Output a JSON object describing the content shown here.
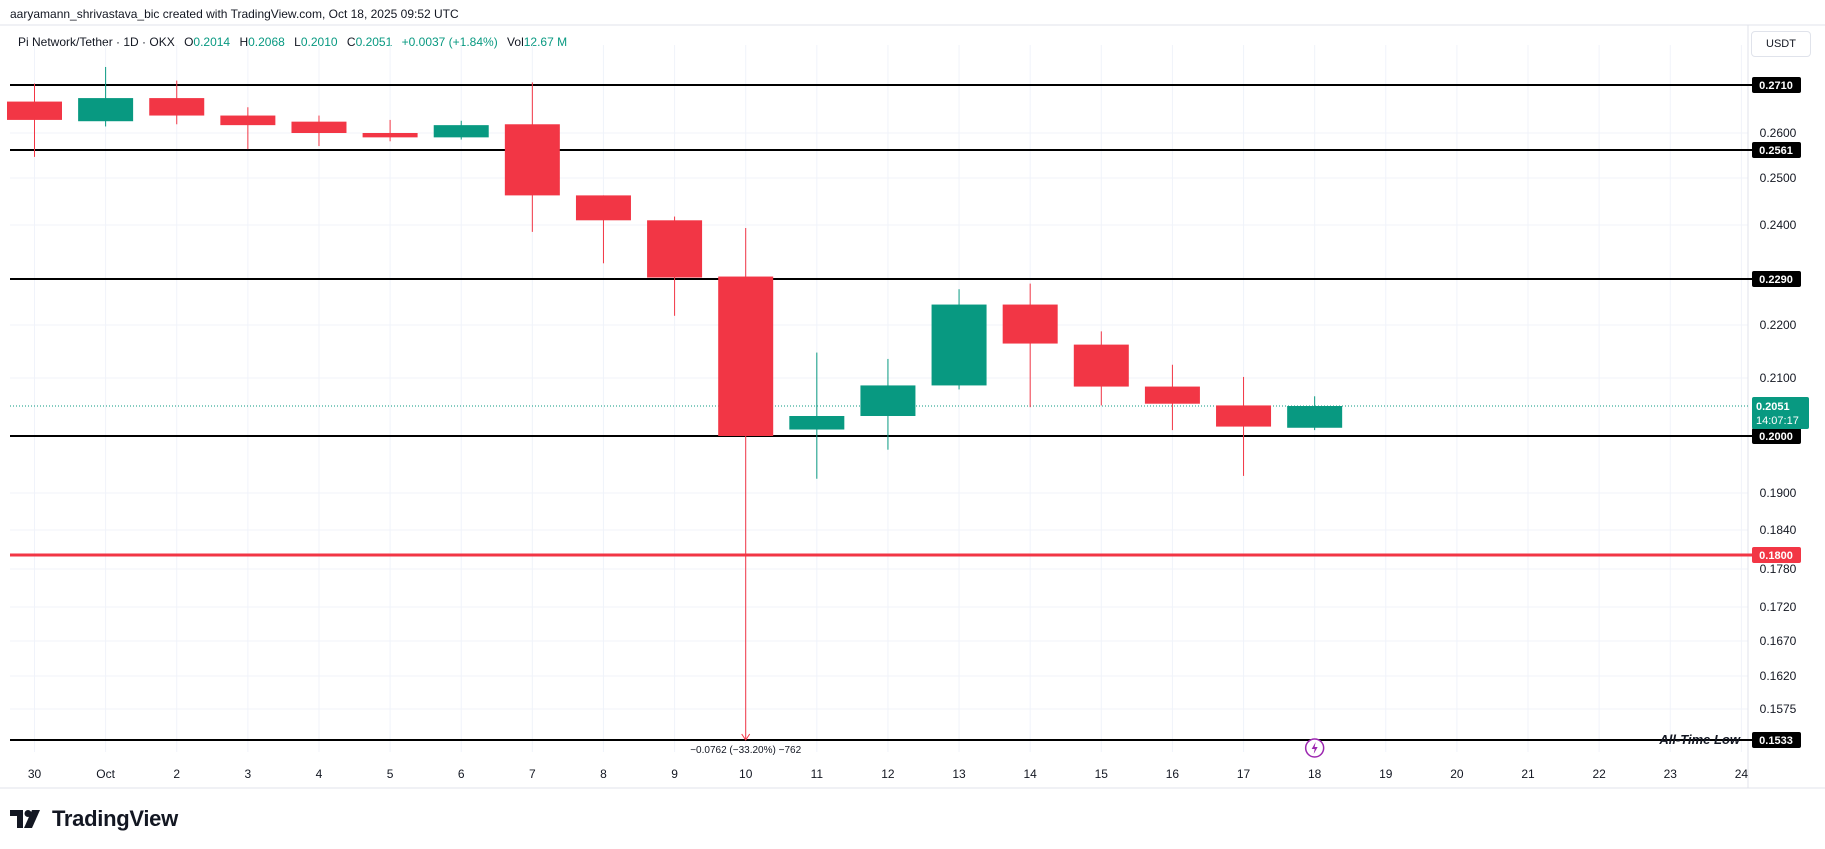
{
  "header": {
    "attribution": "aaryamann_shrivastava_bic created with TradingView.com, Oct 18, 2025 09:52 UTC",
    "symbol": "Pi Network/Tether · 1D · OKX",
    "open_label": "O",
    "open": "0.2014",
    "high_label": "H",
    "high": "0.2068",
    "low_label": "L",
    "low": "0.2010",
    "close_label": "C",
    "close": "0.2051",
    "change": "+0.0037 (+1.84%)",
    "vol_label": "Vol",
    "volume": "12.67 M"
  },
  "currency_button": "USDT",
  "brand": {
    "name": "TradingView",
    "icon": "tradingview-logo-icon"
  },
  "colors": {
    "up": "#089981",
    "down": "#f23645",
    "level": "#000000",
    "support": "#f23645",
    "grid": "#f0f3fa"
  },
  "chart_data": {
    "type": "candlestick",
    "title": "Pi Network/Tether · 1D · OKX",
    "y_ticks": [
      "0.2600",
      "0.2500",
      "0.2400",
      "0.2200",
      "0.2100",
      "0.1900",
      "0.1840",
      "0.1780",
      "0.1720",
      "0.1670",
      "0.1620",
      "0.1575"
    ],
    "x_ticks": [
      "30",
      "Oct",
      "2",
      "3",
      "4",
      "5",
      "6",
      "7",
      "8",
      "9",
      "10",
      "11",
      "12",
      "13",
      "14",
      "15",
      "16",
      "17",
      "18",
      "19",
      "20",
      "21",
      "22",
      "23",
      "24"
    ],
    "candles": [
      {
        "date": "30",
        "open": 0.2672,
        "high": 0.2713,
        "low": 0.2546,
        "close": 0.263
      },
      {
        "date": "Oct",
        "open": 0.2627,
        "high": 0.2751,
        "low": 0.2615,
        "close": 0.268
      },
      {
        "date": "2",
        "open": 0.268,
        "high": 0.272,
        "low": 0.262,
        "close": 0.264
      },
      {
        "date": "3",
        "open": 0.264,
        "high": 0.2659,
        "low": 0.2563,
        "close": 0.2618
      },
      {
        "date": "4",
        "open": 0.2626,
        "high": 0.264,
        "low": 0.257,
        "close": 0.26
      },
      {
        "date": "5",
        "open": 0.26,
        "high": 0.263,
        "low": 0.2581,
        "close": 0.259
      },
      {
        "date": "6",
        "open": 0.259,
        "high": 0.2628,
        "low": 0.2585,
        "close": 0.2618
      },
      {
        "date": "7",
        "open": 0.262,
        "high": 0.2716,
        "low": 0.2386,
        "close": 0.2463
      },
      {
        "date": "8",
        "open": 0.2463,
        "high": 0.2463,
        "low": 0.2322,
        "close": 0.241
      },
      {
        "date": "9",
        "open": 0.241,
        "high": 0.2418,
        "low": 0.2218,
        "close": 0.2293
      },
      {
        "date": "10",
        "open": 0.2295,
        "high": 0.2394,
        "low": 0.1533,
        "close": 0.2
      },
      {
        "date": "11",
        "open": 0.2011,
        "high": 0.2148,
        "low": 0.1925,
        "close": 0.2034
      },
      {
        "date": "12",
        "open": 0.2034,
        "high": 0.2136,
        "low": 0.1976,
        "close": 0.2087
      },
      {
        "date": "13",
        "open": 0.2087,
        "high": 0.227,
        "low": 0.208,
        "close": 0.224
      },
      {
        "date": "14",
        "open": 0.224,
        "high": 0.2281,
        "low": 0.2049,
        "close": 0.2165
      },
      {
        "date": "15",
        "open": 0.2163,
        "high": 0.2188,
        "low": 0.2052,
        "close": 0.2085
      },
      {
        "date": "16",
        "open": 0.2085,
        "high": 0.2125,
        "low": 0.201,
        "close": 0.2055
      },
      {
        "date": "17",
        "open": 0.2052,
        "high": 0.2102,
        "low": 0.193,
        "close": 0.2016
      },
      {
        "date": "18",
        "open": 0.2014,
        "high": 0.2068,
        "low": 0.201,
        "close": 0.2051
      }
    ],
    "levels": [
      {
        "label": "0.2710",
        "value": 0.271,
        "color": "#000000"
      },
      {
        "label": "0.2561",
        "value": 0.2561,
        "color": "#000000"
      },
      {
        "label": "0.2290",
        "value": 0.229,
        "color": "#000000"
      },
      {
        "label": "0.2000",
        "value": 0.2,
        "color": "#000000"
      },
      {
        "label": "0.1800",
        "value": 0.18,
        "color": "#f23645"
      },
      {
        "label": "0.1533",
        "value": 0.1533,
        "color": "#000000",
        "annotation": "All-Time Low"
      }
    ],
    "last_price": {
      "label": "0.2051",
      "value": 0.2051,
      "countdown": "14:07:17",
      "color": "#089981"
    },
    "annotations": {
      "low_measure": "−0.0762 (−33.20%) −762",
      "event_icon": "lightning-icon"
    }
  }
}
